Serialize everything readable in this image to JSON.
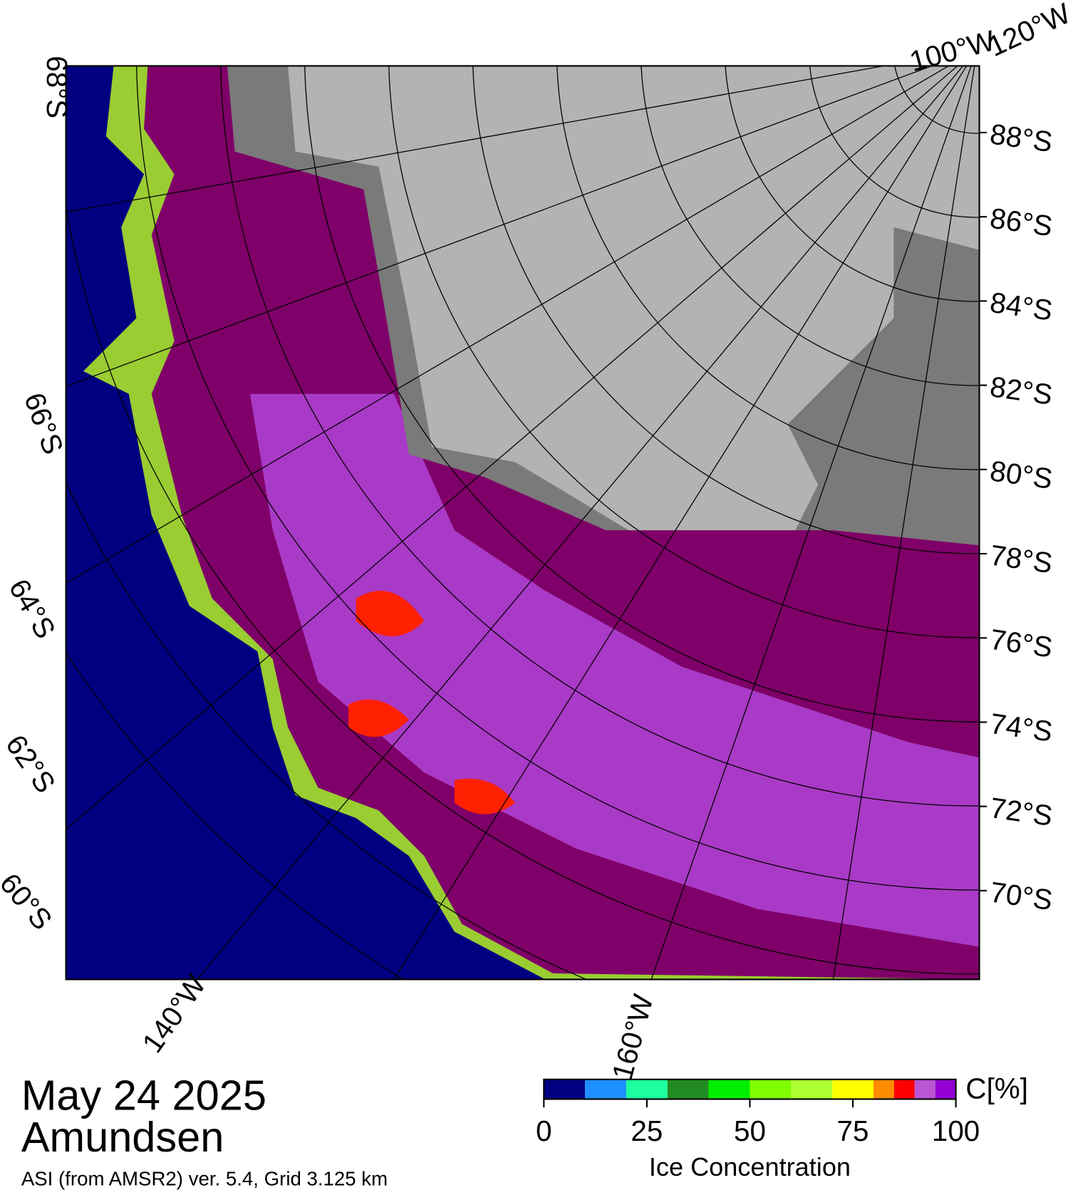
{
  "header": {
    "date": "May 24 2025",
    "region": "Amundsen",
    "source": "ASI (from AMSR2) ver. 5.4,  Grid 3.125 km"
  },
  "map": {
    "lat_labels_right": [
      "88°S",
      "86°S",
      "84°S",
      "82°S",
      "80°S",
      "78°S",
      "76°S",
      "74°S",
      "72°S",
      "70°S"
    ],
    "lat_labels_left": [
      "68°S",
      "66°S",
      "64°S",
      "62°S",
      "60°S"
    ],
    "lon_labels": [
      "140°W",
      "160°W",
      "100°W",
      "120°W"
    ]
  },
  "colorbar": {
    "unit": "C[%]",
    "title": "Ice Concentration",
    "bounds": [
      0,
      10,
      20,
      30,
      40,
      50,
      60,
      70,
      80,
      85,
      90,
      95,
      100
    ],
    "colors": [
      "#000080",
      "#1e90ff",
      "#1effa0",
      "#228b22",
      "#00ee00",
      "#7fff00",
      "#adff2f",
      "#ffff00",
      "#ff8c00",
      "#ff0000",
      "#ba55d3",
      "#9400d3"
    ],
    "ticks": [
      0,
      25,
      50,
      75,
      100
    ]
  }
}
